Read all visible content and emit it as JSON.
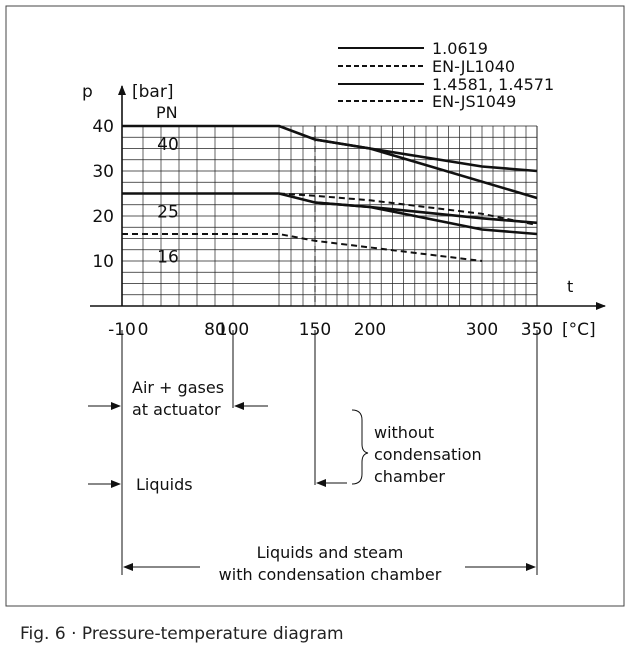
{
  "caption": "Fig. 6 · Pressure-temperature diagram",
  "chart_data": {
    "type": "line",
    "y_axis": {
      "symbol": "p",
      "unit": "[bar]",
      "ticks": [
        10,
        20,
        30,
        40
      ],
      "ylim": [
        0,
        45
      ]
    },
    "x_axis": {
      "symbol": "t",
      "unit": "[°C]",
      "ticks": [
        -10,
        0,
        80,
        100,
        150,
        200,
        300,
        350
      ],
      "xlim": [
        -10,
        370
      ]
    },
    "pn_label": "PN",
    "pn_classes": [
      "40",
      "25",
      "16"
    ],
    "grid": true,
    "legend_position": "top-right",
    "legend": [
      {
        "label": "1.0619",
        "style": "solid"
      },
      {
        "label": "EN-JL1040",
        "style": "dashed"
      },
      {
        "label": "1.4581, 1.4571",
        "style": "solid"
      },
      {
        "label": "EN-JS1049",
        "style": "dashed"
      }
    ],
    "series": [
      {
        "legend_index": 0,
        "style": "solid",
        "x": [
          -10,
          120,
          150,
          200,
          300,
          350
        ],
        "y": [
          40,
          40,
          37,
          35,
          31,
          30
        ]
      },
      {
        "legend_index": 0,
        "style": "solid",
        "x": [
          -10,
          120,
          150,
          200,
          300,
          350
        ],
        "y": [
          25,
          25,
          23,
          22,
          19.5,
          18.5
        ]
      },
      {
        "legend_index": 2,
        "style": "solid",
        "x": [
          150,
          200,
          350
        ],
        "y": [
          37,
          35,
          24
        ]
      },
      {
        "legend_index": 2,
        "style": "solid",
        "x": [
          150,
          200,
          300,
          350
        ],
        "y": [
          23,
          22,
          17,
          16
        ]
      },
      {
        "legend_index": 1,
        "style": "dashed",
        "x": [
          -10,
          120,
          150,
          300
        ],
        "y": [
          16,
          16,
          14.5,
          10
        ]
      },
      {
        "legend_index": 3,
        "style": "dashed",
        "x": [
          120,
          150,
          200,
          300,
          350
        ],
        "y": [
          25,
          24.5,
          23.5,
          20.5,
          18
        ]
      }
    ],
    "annotations": {
      "air_gases": {
        "text_lines": [
          "Air + gases",
          "at actuator"
        ],
        "range": [
          -10,
          100
        ]
      },
      "without_condensation": {
        "text_lines": [
          "without",
          "condensation",
          "chamber"
        ],
        "from": 150
      },
      "liquids": {
        "text": "Liquids",
        "from": -10
      },
      "liquids_steam": {
        "text_lines": [
          "Liquids and steam",
          "with condensation chamber"
        ],
        "range": [
          -10,
          350
        ]
      }
    }
  }
}
